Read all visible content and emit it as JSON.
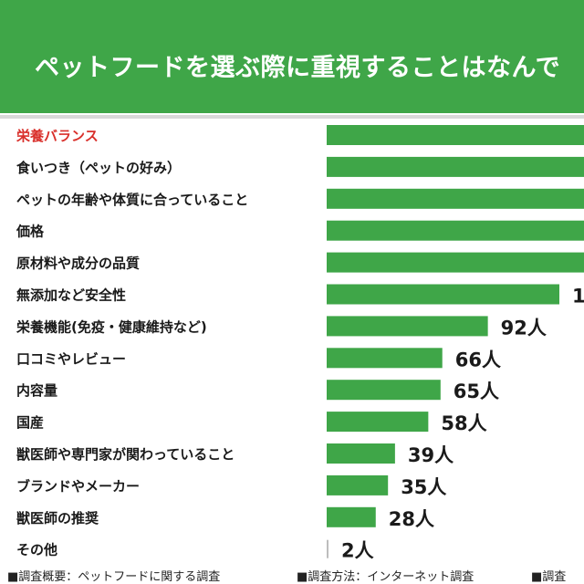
{
  "header": {
    "title": "ペットフードを選ぶ際に重視することはなんで"
  },
  "chart_data": {
    "type": "bar",
    "orientation": "horizontal",
    "unit": "人",
    "accent_color": "#3fa648",
    "highlight_color": "#d9302b",
    "categories": [
      "栄養バランス",
      "食いつき（ペットの好み）",
      "ペットの年齢や体質に合っていること",
      "価格",
      "原材料や成分の品質",
      "無添加など安全性",
      "栄養機能(免疫・健康維持など)",
      "口コミやレビュー",
      "内容量",
      "国産",
      "獣医師や専門家が関わっていること",
      "ブランドやメーカー",
      "獣医師の推奨",
      "その他"
    ],
    "values": [
      null,
      null,
      null,
      null,
      null,
      null,
      92,
      66,
      65,
      58,
      39,
      35,
      28,
      2
    ],
    "value_labels": [
      "",
      "",
      "",
      "",
      "",
      "1",
      "92人",
      "66人",
      "65人",
      "58人",
      "39人",
      "35人",
      "28人",
      "2人"
    ],
    "highlighted_category": "栄養バランス"
  },
  "footer": {
    "items": [
      "■調査概要：ペットフードに関する調査",
      "■調査方法：インターネット調査",
      "■調査"
    ]
  }
}
